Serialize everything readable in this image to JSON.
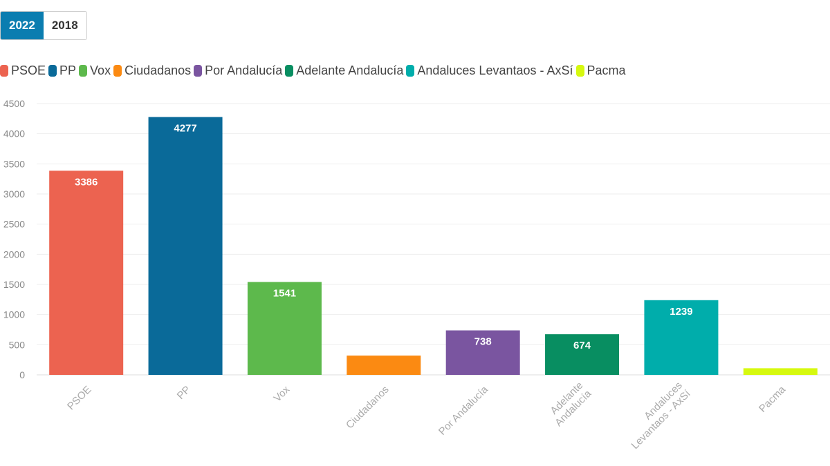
{
  "tabs": [
    {
      "label": "2022",
      "active": true
    },
    {
      "label": "2018",
      "active": false
    }
  ],
  "chart_data": {
    "type": "bar",
    "categories": [
      "PSOE",
      "PP",
      "Vox",
      "Ciudadanos",
      "Por Andalucía",
      "Adelante Andalucía",
      "Andaluces Levantaos - AxSí",
      "Pacma"
    ],
    "category_tick_lines": [
      [
        "PSOE"
      ],
      [
        "PP"
      ],
      [
        "Vox"
      ],
      [
        "Ciudadanos"
      ],
      [
        "Por Andalucía"
      ],
      [
        "Adelante",
        "Andalucía"
      ],
      [
        "Andaluces",
        "Levantaos - AxSí"
      ],
      [
        "Pacma"
      ]
    ],
    "values": [
      3386,
      4277,
      1541,
      320,
      738,
      674,
      1239,
      110
    ],
    "data_labels": [
      "3386",
      "4277",
      "1541",
      "",
      "738",
      "674",
      "1239",
      ""
    ],
    "colors": [
      "#ec6350",
      "#0a6a99",
      "#5db94c",
      "#fb8a12",
      "#7a55a0",
      "#088e61",
      "#00adab",
      "#d6f90f"
    ],
    "ylim": [
      0,
      4500
    ],
    "yticks": [
      0,
      500,
      1000,
      1500,
      2000,
      2500,
      3000,
      3500,
      4000,
      4500
    ],
    "grid": true,
    "legend": "top-left",
    "title": "",
    "xlabel": "",
    "ylabel": ""
  }
}
